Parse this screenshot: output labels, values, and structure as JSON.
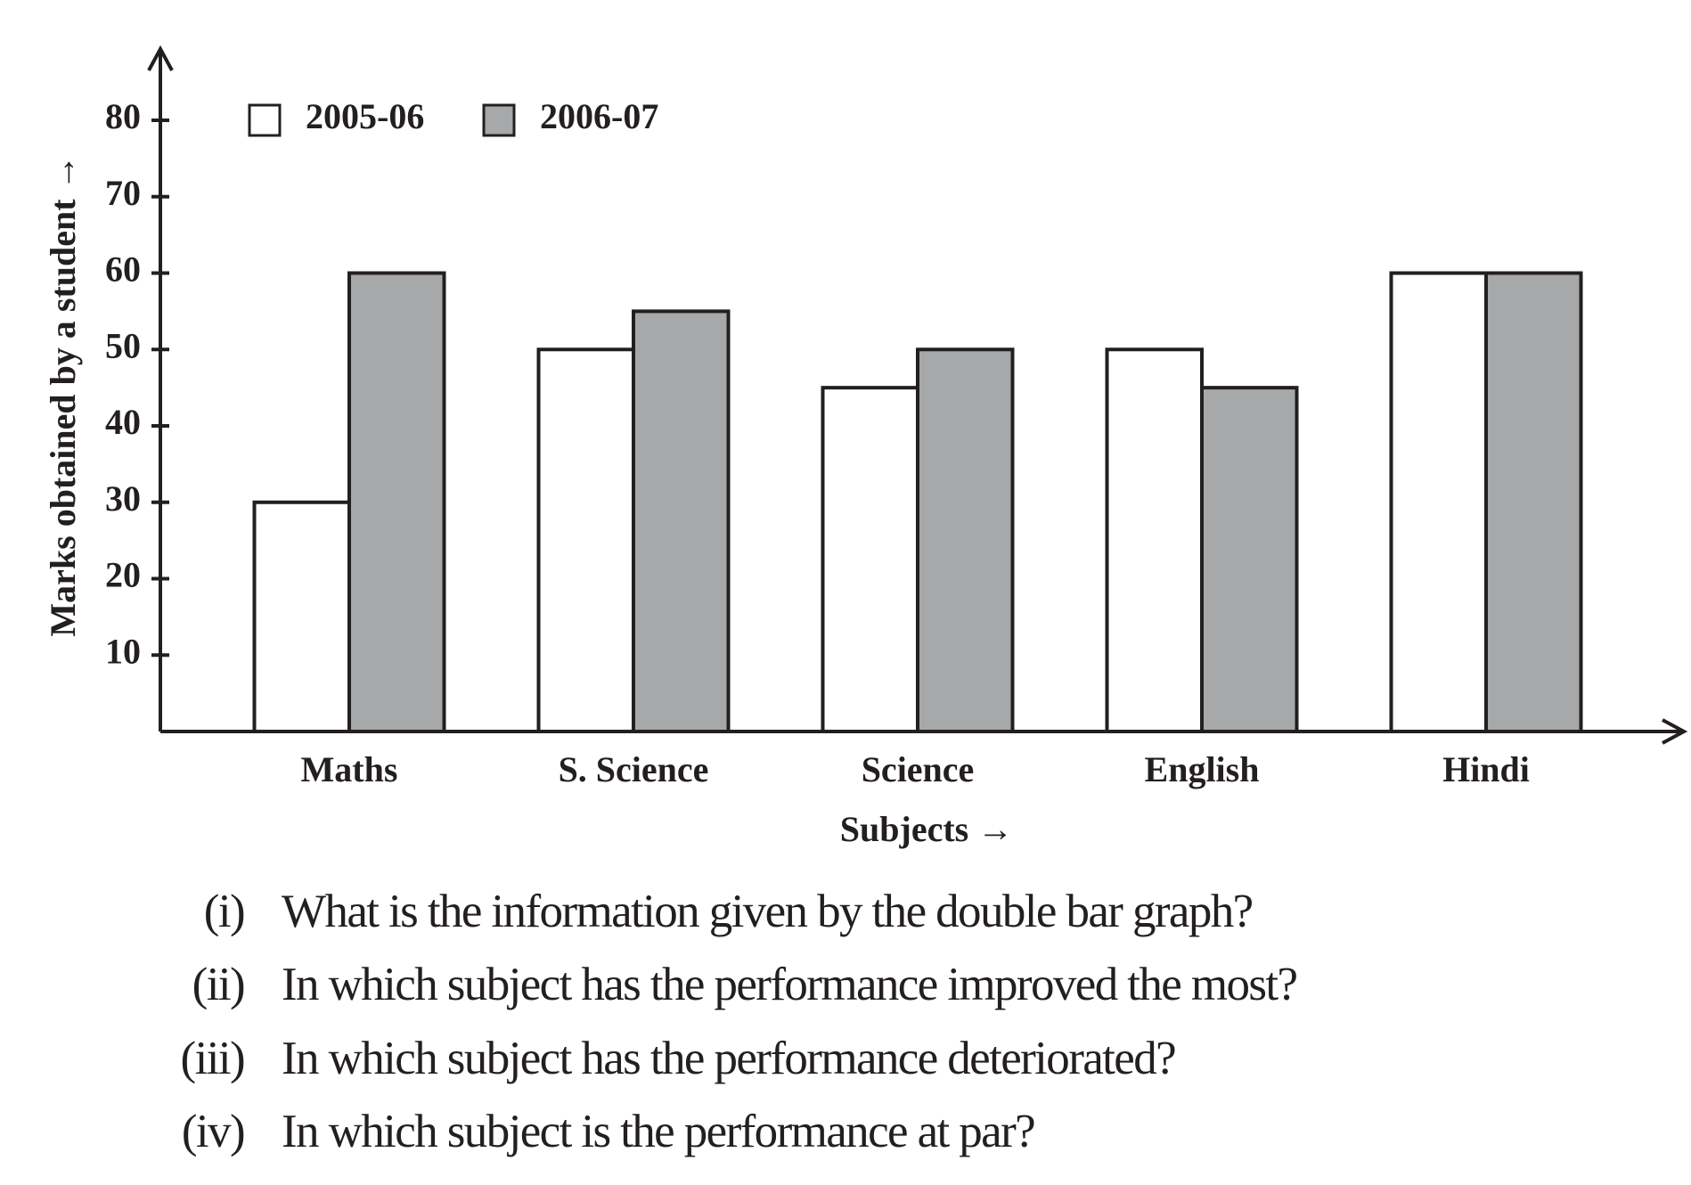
{
  "chart_data": {
    "type": "bar",
    "x_label": "Subjects →",
    "y_label": "Marks obtained by a student →",
    "categories": [
      "Maths",
      "S. Science",
      "Science",
      "English",
      "Hindi"
    ],
    "series": [
      {
        "name": "2005-06",
        "color": "#ffffff",
        "values": [
          30,
          50,
          45,
          50,
          60
        ]
      },
      {
        "name": "2006-07",
        "color": "#a7a8aa",
        "values": [
          60,
          55,
          50,
          45,
          60
        ]
      }
    ],
    "ylim": [
      0,
      80
    ],
    "yticks": [
      10,
      20,
      30,
      40,
      50,
      60,
      70,
      80
    ]
  },
  "questions": [
    {
      "number": "(i)",
      "text": "What is the information given by the double bar graph?"
    },
    {
      "number": "(ii)",
      "text": "In which subject has the performance improved the most?"
    },
    {
      "number": "(iii)",
      "text": "In which subject has the performance deteriorated?"
    },
    {
      "number": "(iv)",
      "text": "In which subject is the performance at par?"
    }
  ]
}
